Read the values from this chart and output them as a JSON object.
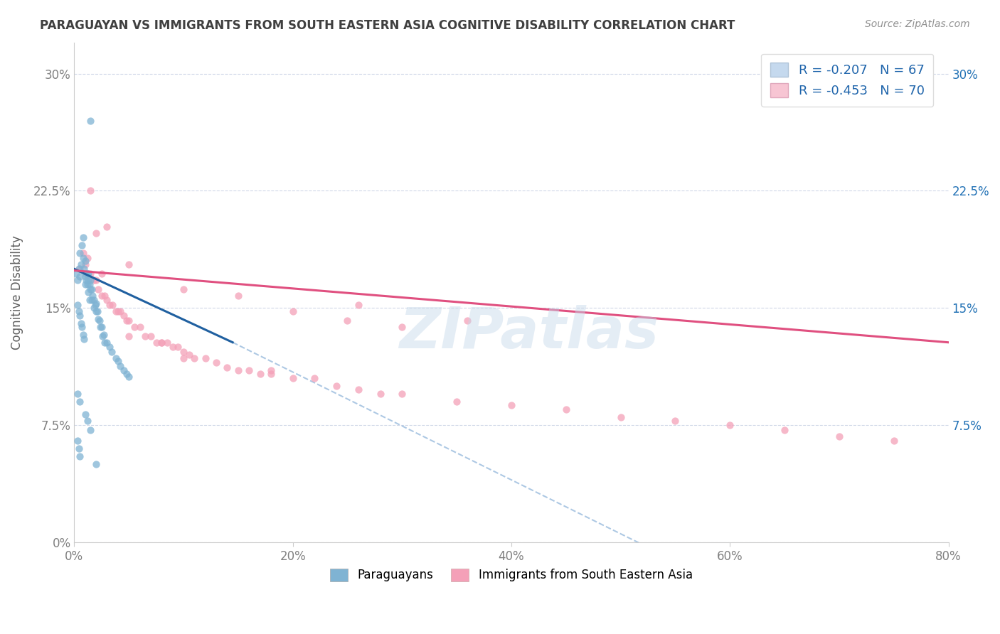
{
  "title": "PARAGUAYAN VS IMMIGRANTS FROM SOUTH EASTERN ASIA COGNITIVE DISABILITY CORRELATION CHART",
  "source": "Source: ZipAtlas.com",
  "ylabel": "Cognitive Disability",
  "legend_labels": [
    "Paraguayans",
    "Immigrants from South Eastern Asia"
  ],
  "r_values": [
    -0.207,
    -0.453
  ],
  "n_values": [
    67,
    70
  ],
  "scatter_color_blue": "#7fb3d3",
  "scatter_color_pink": "#f4a0b8",
  "line_color_blue": "#2060a0",
  "line_color_pink": "#e05080",
  "dashed_color": "#99bbdd",
  "legend_fill_blue": "#c5d9ee",
  "legend_fill_pink": "#f7c5d3",
  "r_color": "#2166ac",
  "watermark": "ZIPatlas",
  "xlim": [
    0.0,
    0.8
  ],
  "ylim": [
    0.0,
    0.32
  ],
  "xticks": [
    0.0,
    0.2,
    0.4,
    0.6,
    0.8
  ],
  "yticks_left": [
    0.0,
    0.075,
    0.15,
    0.225,
    0.3
  ],
  "yticks_right": [
    0.075,
    0.15,
    0.225,
    0.3
  ],
  "blue_scatter_x": [
    0.002,
    0.003,
    0.004,
    0.005,
    0.005,
    0.006,
    0.007,
    0.008,
    0.008,
    0.009,
    0.01,
    0.01,
    0.01,
    0.011,
    0.011,
    0.012,
    0.012,
    0.013,
    0.013,
    0.013,
    0.014,
    0.014,
    0.015,
    0.015,
    0.016,
    0.016,
    0.017,
    0.018,
    0.018,
    0.019,
    0.02,
    0.02,
    0.021,
    0.022,
    0.023,
    0.024,
    0.025,
    0.026,
    0.027,
    0.028,
    0.03,
    0.032,
    0.034,
    0.038,
    0.04,
    0.042,
    0.045,
    0.048,
    0.05,
    0.003,
    0.004,
    0.005,
    0.006,
    0.007,
    0.008,
    0.009,
    0.003,
    0.005,
    0.01,
    0.012,
    0.015,
    0.003,
    0.004,
    0.005,
    0.015,
    0.02
  ],
  "blue_scatter_y": [
    0.172,
    0.168,
    0.175,
    0.17,
    0.185,
    0.178,
    0.19,
    0.195,
    0.182,
    0.175,
    0.165,
    0.18,
    0.17,
    0.168,
    0.172,
    0.165,
    0.172,
    0.16,
    0.168,
    0.172,
    0.165,
    0.155,
    0.162,
    0.168,
    0.155,
    0.162,
    0.158,
    0.15,
    0.155,
    0.152,
    0.148,
    0.153,
    0.148,
    0.143,
    0.142,
    0.138,
    0.138,
    0.132,
    0.133,
    0.128,
    0.128,
    0.125,
    0.122,
    0.118,
    0.116,
    0.113,
    0.11,
    0.108,
    0.106,
    0.152,
    0.148,
    0.145,
    0.14,
    0.138,
    0.133,
    0.13,
    0.095,
    0.09,
    0.082,
    0.078,
    0.072,
    0.065,
    0.06,
    0.055,
    0.27,
    0.05
  ],
  "pink_scatter_x": [
    0.005,
    0.008,
    0.01,
    0.012,
    0.015,
    0.018,
    0.02,
    0.022,
    0.025,
    0.028,
    0.03,
    0.032,
    0.035,
    0.038,
    0.04,
    0.042,
    0.045,
    0.048,
    0.05,
    0.055,
    0.06,
    0.065,
    0.07,
    0.075,
    0.08,
    0.085,
    0.09,
    0.095,
    0.1,
    0.105,
    0.11,
    0.12,
    0.13,
    0.14,
    0.15,
    0.16,
    0.17,
    0.18,
    0.2,
    0.22,
    0.24,
    0.26,
    0.28,
    0.3,
    0.35,
    0.4,
    0.45,
    0.5,
    0.55,
    0.6,
    0.65,
    0.7,
    0.75,
    0.015,
    0.02,
    0.025,
    0.03,
    0.05,
    0.1,
    0.15,
    0.2,
    0.25,
    0.3,
    0.05,
    0.08,
    0.1,
    0.18,
    0.26,
    0.36
  ],
  "pink_scatter_y": [
    0.175,
    0.185,
    0.178,
    0.182,
    0.172,
    0.168,
    0.168,
    0.162,
    0.158,
    0.158,
    0.155,
    0.152,
    0.152,
    0.148,
    0.148,
    0.148,
    0.145,
    0.142,
    0.142,
    0.138,
    0.138,
    0.132,
    0.132,
    0.128,
    0.128,
    0.128,
    0.125,
    0.125,
    0.122,
    0.12,
    0.118,
    0.118,
    0.115,
    0.112,
    0.11,
    0.11,
    0.108,
    0.108,
    0.105,
    0.105,
    0.1,
    0.098,
    0.095,
    0.095,
    0.09,
    0.088,
    0.085,
    0.08,
    0.078,
    0.075,
    0.072,
    0.068,
    0.065,
    0.225,
    0.198,
    0.172,
    0.202,
    0.178,
    0.162,
    0.158,
    0.148,
    0.142,
    0.138,
    0.132,
    0.128,
    0.118,
    0.11,
    0.152,
    0.142
  ],
  "blue_line_x": [
    0.0,
    0.145
  ],
  "blue_line_y": [
    0.175,
    0.128
  ],
  "dashed_line_x": [
    0.145,
    0.8
  ],
  "dashed_line_y": [
    0.128,
    -0.098
  ],
  "pink_line_x": [
    0.0,
    0.8
  ],
  "pink_line_y": [
    0.174,
    0.128
  ],
  "background_color": "#ffffff",
  "plot_bg_color": "#ffffff",
  "grid_color": "#d0d8e8",
  "title_color": "#404040",
  "axis_label_color": "#606060",
  "tick_label_color_left": "#808080",
  "tick_label_color_right": "#2171b5"
}
